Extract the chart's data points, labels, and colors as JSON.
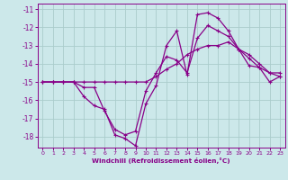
{
  "xlabel": "Windchill (Refroidissement éolien,°C)",
  "bg_color": "#cce8ea",
  "grid_color": "#aacccc",
  "line_color": "#880088",
  "xlim": [
    -0.5,
    23.5
  ],
  "ylim": [
    -18.6,
    -10.7
  ],
  "yticks": [
    -11,
    -12,
    -13,
    -14,
    -15,
    -16,
    -17,
    -18
  ],
  "xticks": [
    0,
    1,
    2,
    3,
    4,
    5,
    6,
    7,
    8,
    9,
    10,
    11,
    12,
    13,
    14,
    15,
    16,
    17,
    18,
    19,
    20,
    21,
    22,
    23
  ],
  "line1_x": [
    0,
    1,
    2,
    3,
    4,
    5,
    6,
    7,
    8,
    9,
    10,
    11,
    12,
    13,
    14,
    15,
    16,
    17,
    18,
    19,
    20,
    21,
    22,
    23
  ],
  "line1_y": [
    -15.0,
    -15.0,
    -15.0,
    -15.0,
    -15.8,
    -16.3,
    -16.5,
    -17.9,
    -18.1,
    -18.5,
    -16.2,
    -15.2,
    -13.0,
    -12.2,
    -14.6,
    -11.3,
    -11.2,
    -11.5,
    -12.2,
    -13.2,
    -14.1,
    -14.2,
    -15.0,
    -14.7
  ],
  "line2_x": [
    0,
    1,
    2,
    3,
    4,
    5,
    6,
    7,
    8,
    9,
    10,
    11,
    12,
    13,
    14,
    15,
    16,
    17,
    18,
    19,
    20,
    21,
    22,
    23
  ],
  "line2_y": [
    -15.0,
    -15.0,
    -15.0,
    -15.0,
    -15.3,
    -15.3,
    -16.6,
    -17.6,
    -17.9,
    -17.7,
    -15.5,
    -14.5,
    -13.6,
    -13.8,
    -14.5,
    -12.6,
    -11.9,
    -12.2,
    -12.5,
    -13.2,
    -13.7,
    -14.2,
    -14.5,
    -14.5
  ],
  "line3_x": [
    0,
    1,
    2,
    3,
    4,
    5,
    6,
    7,
    8,
    9,
    10,
    11,
    12,
    13,
    14,
    15,
    16,
    17,
    18,
    19,
    20,
    21,
    22,
    23
  ],
  "line3_y": [
    -15.0,
    -15.0,
    -15.0,
    -15.0,
    -15.0,
    -15.0,
    -15.0,
    -15.0,
    -15.0,
    -15.0,
    -15.0,
    -14.7,
    -14.3,
    -14.0,
    -13.5,
    -13.2,
    -13.0,
    -13.0,
    -12.8,
    -13.2,
    -13.5,
    -14.0,
    -14.5,
    -14.7
  ]
}
